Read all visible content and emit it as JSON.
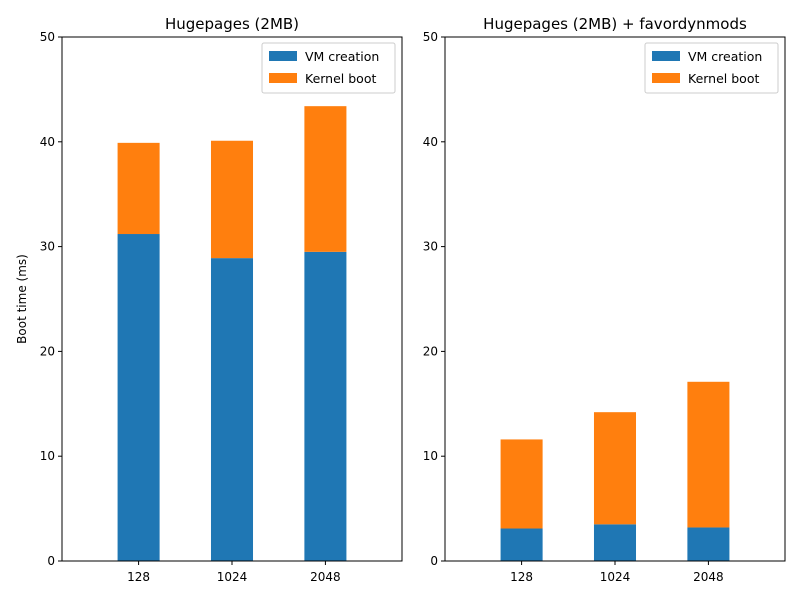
{
  "chart_data": [
    {
      "type": "bar",
      "stacked": true,
      "title": "Hugepages (2MB)",
      "xlabel": "",
      "ylabel": "Boot time (ms)",
      "categories": [
        "128",
        "1024",
        "2048"
      ],
      "ylim": [
        0,
        50
      ],
      "yticks": [
        "0",
        "10",
        "20",
        "30",
        "40",
        "50"
      ],
      "legend_position": "top-right",
      "series": [
        {
          "name": "VM creation",
          "color": "#1f77b4",
          "values": [
            31.2,
            28.9,
            29.5
          ]
        },
        {
          "name": "Kernel boot",
          "color": "#ff7f0e",
          "values": [
            8.7,
            11.2,
            13.9
          ]
        }
      ]
    },
    {
      "type": "bar",
      "stacked": true,
      "title": "Hugepages (2MB) + favordynmods",
      "xlabel": "",
      "ylabel": "",
      "categories": [
        "128",
        "1024",
        "2048"
      ],
      "ylim": [
        0,
        50
      ],
      "yticks": [
        "0",
        "10",
        "20",
        "30",
        "40",
        "50"
      ],
      "legend_position": "top-right",
      "series": [
        {
          "name": "VM creation",
          "color": "#1f77b4",
          "values": [
            3.1,
            3.5,
            3.2
          ]
        },
        {
          "name": "Kernel boot",
          "color": "#ff7f0e",
          "values": [
            8.5,
            10.7,
            13.9
          ]
        }
      ]
    }
  ]
}
